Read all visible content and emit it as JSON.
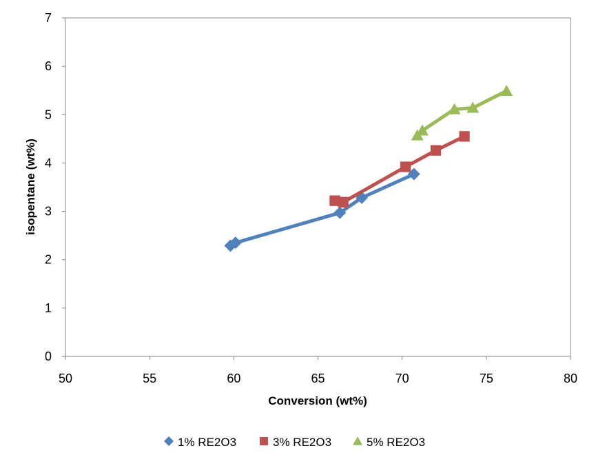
{
  "chart_data": {
    "type": "line",
    "title": "",
    "xlabel": "Conversion (wt%)",
    "ylabel": "isopentane (wt%)",
    "xlim": [
      50,
      80
    ],
    "ylim": [
      0,
      7
    ],
    "xticks": [
      50,
      55,
      60,
      65,
      70,
      75,
      80
    ],
    "yticks": [
      0,
      1,
      2,
      3,
      4,
      5,
      6,
      7
    ],
    "grid": false,
    "legend_position": "bottom",
    "series": [
      {
        "name": "1% RE2O3",
        "color": "#4F81BD",
        "marker": "diamond",
        "points": [
          [
            59.8,
            2.29
          ],
          [
            60.1,
            2.35
          ],
          [
            66.3,
            2.97
          ],
          [
            67.6,
            3.28
          ],
          [
            70.7,
            3.77
          ]
        ]
      },
      {
        "name": "3% RE2O3",
        "color": "#C0504D",
        "marker": "square",
        "points": [
          [
            66.0,
            3.22
          ],
          [
            66.5,
            3.19
          ],
          [
            70.2,
            3.92
          ],
          [
            72.0,
            4.26
          ],
          [
            73.7,
            4.55
          ]
        ]
      },
      {
        "name": "5% RE2O3",
        "color": "#9BBB59",
        "marker": "triangle",
        "points": [
          [
            70.9,
            4.57
          ],
          [
            71.2,
            4.67
          ],
          [
            73.1,
            5.11
          ],
          [
            74.2,
            5.14
          ],
          [
            76.2,
            5.49
          ]
        ]
      }
    ]
  }
}
